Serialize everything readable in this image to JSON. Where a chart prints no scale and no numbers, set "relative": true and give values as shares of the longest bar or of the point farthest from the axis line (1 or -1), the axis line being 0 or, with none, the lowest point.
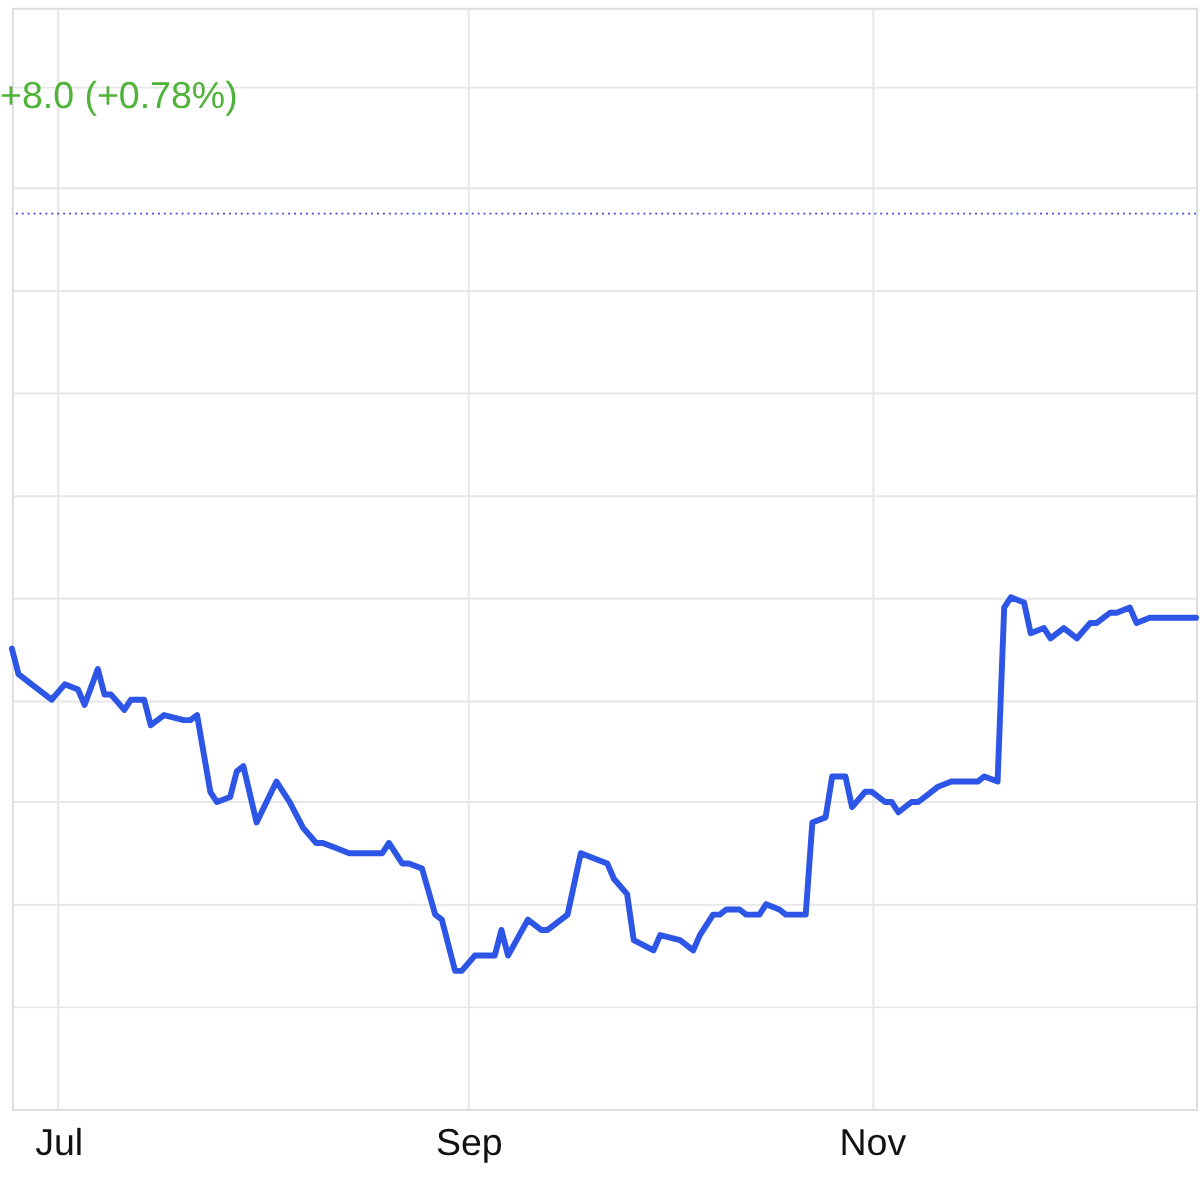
{
  "chart_data": {
    "type": "line",
    "relative": true,
    "x": [
      "--06-24",
      "--06-25",
      "--06-27",
      "--06-30",
      "--07-02",
      "--07-04",
      "--07-05",
      "--07-07",
      "--07-08",
      "--07-09",
      "--07-11",
      "--07-12",
      "--07-14",
      "--07-15",
      "--07-17",
      "--07-20",
      "--07-21",
      "--07-22",
      "--07-24",
      "--07-25",
      "--07-27",
      "--07-28",
      "--07-29",
      "--07-31",
      "--08-03",
      "--08-05",
      "--08-07",
      "--08-09",
      "--08-10",
      "--08-12",
      "--08-14",
      "--08-16",
      "--08-19",
      "--08-20",
      "--08-22",
      "--08-23",
      "--08-25",
      "--08-27",
      "--08-28",
      "--08-30",
      "--08-31",
      "--09-02",
      "--09-03",
      "--09-05",
      "--09-06",
      "--09-07",
      "--09-10",
      "--09-12",
      "--09-13",
      "--09-16",
      "--09-18",
      "--09-22",
      "--09-23",
      "--09-25",
      "--09-26",
      "--09-29",
      "--09-30",
      "--10-03",
      "--10-05",
      "--10-06",
      "--10-08",
      "--10-09",
      "--10-10",
      "--10-12",
      "--10-13",
      "--10-15",
      "--10-16",
      "--10-18",
      "--10-19",
      "--10-21",
      "--10-22",
      "--10-23",
      "--10-25",
      "--10-26",
      "--10-28",
      "--10-29",
      "--10-31",
      "--11-01",
      "--11-03",
      "--11-04",
      "--11-05",
      "--11-07",
      "--11-08",
      "--11-10",
      "--11-11",
      "--11-13",
      "--11-17",
      "--11-18",
      "--11-20",
      "--11-21",
      "--11-22",
      "--11-24",
      "--11-25",
      "--11-27",
      "--11-28",
      "--11-30",
      "--12-02",
      "--12-04",
      "--12-05",
      "--12-07",
      "--12-08",
      "--12-10",
      "--12-11",
      "--12-13",
      "--12-20"
    ],
    "series": [
      {
        "color": "#2d55e6",
        "values": [
          0.9,
          0.85,
          0.83,
          0.8,
          0.83,
          0.82,
          0.79,
          0.86,
          0.81,
          0.81,
          0.78,
          0.8,
          0.8,
          0.75,
          0.77,
          0.76,
          0.76,
          0.77,
          0.62,
          0.6,
          0.61,
          0.66,
          0.67,
          0.56,
          0.64,
          0.6,
          0.55,
          0.52,
          0.52,
          0.51,
          0.5,
          0.5,
          0.5,
          0.52,
          0.48,
          0.48,
          0.47,
          0.38,
          0.37,
          0.27,
          0.27,
          0.3,
          0.3,
          0.3,
          0.35,
          0.3,
          0.37,
          0.35,
          0.35,
          0.38,
          0.5,
          0.48,
          0.45,
          0.42,
          0.33,
          0.31,
          0.34,
          0.33,
          0.31,
          0.34,
          0.38,
          0.38,
          0.39,
          0.39,
          0.38,
          0.38,
          0.4,
          0.39,
          0.38,
          0.38,
          0.38,
          0.56,
          0.57,
          0.65,
          0.65,
          0.59,
          0.62,
          0.62,
          0.6,
          0.6,
          0.58,
          0.6,
          0.6,
          0.62,
          0.63,
          0.64,
          0.64,
          0.65,
          0.64,
          0.98,
          1.0,
          0.99,
          0.93,
          0.94,
          0.92,
          0.94,
          0.92,
          0.95,
          0.95,
          0.97,
          0.97,
          0.98,
          0.95,
          0.96,
          0.96
        ]
      }
    ],
    "xlim": [
      "--06-24",
      "--12-20"
    ],
    "xticks": [
      {
        "value": "--07-01",
        "label": "Jul"
      },
      {
        "value": "--09-01",
        "label": "Sep"
      },
      {
        "value": "--11-01",
        "label": "Nov"
      }
    ],
    "ref_lines": [
      {
        "axis": "y",
        "value": 1.75,
        "color": "#3b4fe0",
        "line_style": "dotted"
      }
    ],
    "annotations": [
      "+8.0 (+0.78%)"
    ],
    "grid": true,
    "marker": "none",
    "line_style": "solid"
  }
}
